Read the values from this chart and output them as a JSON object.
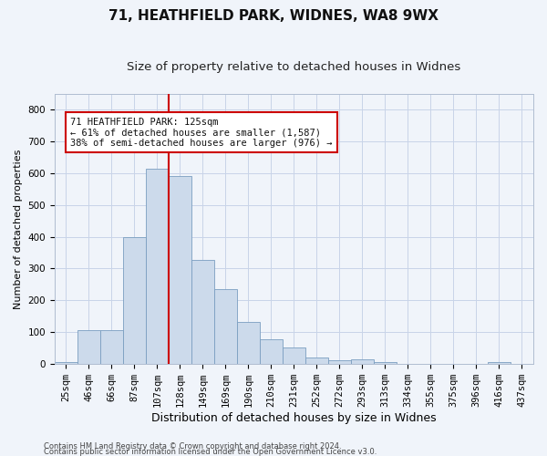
{
  "title1": "71, HEATHFIELD PARK, WIDNES, WA8 9WX",
  "title2": "Size of property relative to detached houses in Widnes",
  "xlabel": "Distribution of detached houses by size in Widnes",
  "ylabel": "Number of detached properties",
  "footer1": "Contains HM Land Registry data © Crown copyright and database right 2024.",
  "footer2": "Contains public sector information licensed under the Open Government Licence v3.0.",
  "bar_labels": [
    "25sqm",
    "46sqm",
    "66sqm",
    "87sqm",
    "107sqm",
    "128sqm",
    "149sqm",
    "169sqm",
    "190sqm",
    "210sqm",
    "231sqm",
    "252sqm",
    "272sqm",
    "293sqm",
    "313sqm",
    "334sqm",
    "355sqm",
    "375sqm",
    "396sqm",
    "416sqm",
    "437sqm"
  ],
  "bar_values": [
    5,
    107,
    107,
    400,
    613,
    591,
    328,
    235,
    133,
    78,
    52,
    22,
    13,
    16,
    5,
    0,
    0,
    0,
    0,
    7,
    0
  ],
  "bar_color": "#ccdaeb",
  "bar_edge_color": "#7a9ec0",
  "red_line_x": 4.5,
  "annotation_text": "71 HEATHFIELD PARK: 125sqm\n← 61% of detached houses are smaller (1,587)\n38% of semi-detached houses are larger (976) →",
  "annotation_box_color": "#ffffff",
  "annotation_box_edge": "#cc0000",
  "ylim": [
    0,
    850
  ],
  "yticks": [
    0,
    100,
    200,
    300,
    400,
    500,
    600,
    700,
    800
  ],
  "bg_color": "#f0f4fa",
  "grid_color": "#c8d4e8",
  "title1_fontsize": 11,
  "title2_fontsize": 9.5,
  "xlabel_fontsize": 9,
  "ylabel_fontsize": 8,
  "tick_fontsize": 7.5,
  "annotation_fontsize": 7.5,
  "footer_fontsize": 6
}
